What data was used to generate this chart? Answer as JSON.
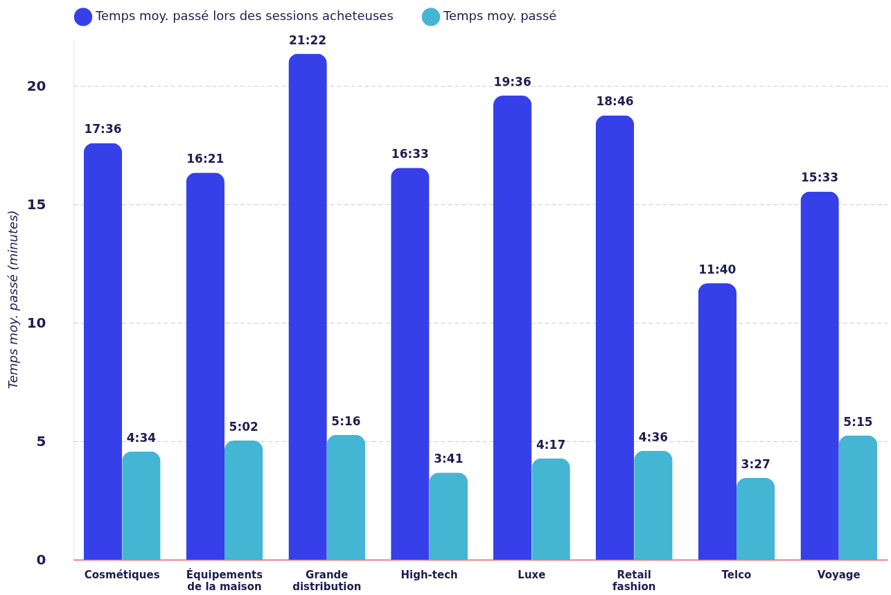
{
  "chart_data": {
    "type": "bar",
    "ylabel": "Temps moy. passé (minutes)",
    "categories": [
      "Cosmétiques",
      "Équipements de la maison",
      "Grande distribution",
      "High-tech",
      "Luxe",
      "Retail fashion",
      "Telco",
      "Voyage"
    ],
    "series": [
      {
        "name": "Temps moy. passé lors des sessions acheteuses",
        "color": "#3640e8",
        "values": [
          17.6,
          16.35,
          21.37,
          16.55,
          19.6,
          18.77,
          11.67,
          15.55
        ],
        "value_labels": [
          "17:36",
          "16:21",
          "21:22",
          "16:33",
          "19:36",
          "18:46",
          "11:40",
          "15:33"
        ]
      },
      {
        "name": "Temps moy. passé",
        "color": "#45b5d4",
        "values": [
          4.57,
          5.03,
          5.27,
          3.68,
          4.28,
          4.6,
          3.45,
          5.25
        ],
        "value_labels": [
          "4:34",
          "5:02",
          "5:16",
          "3:41",
          "4:17",
          "4:36",
          "3:27",
          "5:15"
        ]
      }
    ],
    "ylim": [
      0,
      22
    ],
    "yticks": [
      0,
      5,
      10,
      15,
      20
    ],
    "grid": "y",
    "legend": "top"
  }
}
